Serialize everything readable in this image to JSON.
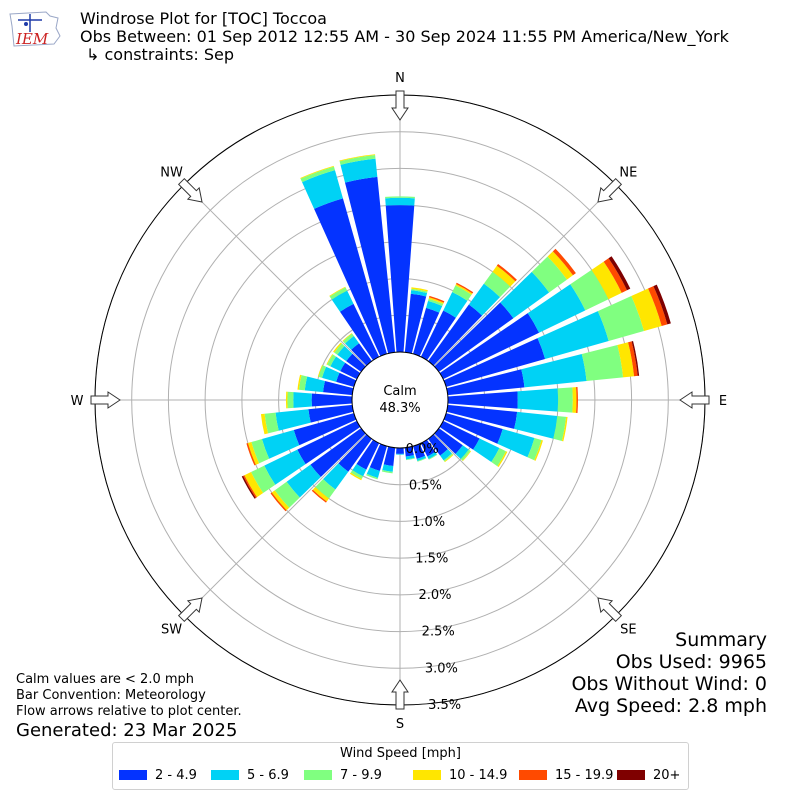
{
  "header": {
    "title": "Windrose Plot for [TOC] Toccoa",
    "obs_between": "Obs Between: 01 Sep 2012 12:55 AM - 30 Sep 2024 11:55 PM America/New_York",
    "constraints": "↳ constraints: Sep",
    "logo_text": "IEM"
  },
  "notes": {
    "calm_note": "Calm values are < 2.0 mph",
    "bar_convention": "Bar Convention: Meteorology",
    "flow_arrows": "Flow arrows relative to plot center.",
    "generated": "Generated: 23 Mar 2025"
  },
  "summary": {
    "heading": "Summary",
    "obs_used": "Obs Used: 9965",
    "obs_without_wind": "Obs Without Wind: 0",
    "avg_speed": "Avg Speed: 2.8 mph"
  },
  "calm": {
    "label": "Calm",
    "value": "48.3%",
    "percent": 48.3
  },
  "colors": {
    "2 - 4.9": "#0433ff",
    "5 - 6.9": "#00d2f5",
    "7 - 9.9": "#80ff80",
    "10 - 14.9": "#ffe600",
    "15 - 19.9": "#ff4a00",
    "20+": "#7f0000"
  },
  "chart_data": {
    "type": "windrose",
    "radial_unit": "%",
    "radial_ticks": [
      "0.0%",
      "0.5%",
      "1.0%",
      "1.5%",
      "2.0%",
      "2.5%",
      "3.0%",
      "3.5%"
    ],
    "radial_max": 3.5,
    "direction_labels": [
      "N",
      "NE",
      "E",
      "SE",
      "S",
      "SW",
      "W",
      "NW"
    ],
    "legend_title": "Wind Speed [mph]",
    "speed_bins": [
      "2 - 4.9",
      "5 - 6.9",
      "7 - 9.9",
      "10 - 14.9",
      "15 - 19.9",
      "20+"
    ],
    "sector_centers_deg": [
      0,
      10,
      20,
      30,
      40,
      50,
      60,
      70,
      80,
      90,
      100,
      110,
      120,
      130,
      140,
      150,
      160,
      170,
      180,
      190,
      200,
      210,
      220,
      230,
      240,
      250,
      260,
      270,
      280,
      290,
      300,
      310,
      320,
      330,
      340,
      350
    ],
    "sectors": [
      [
        2.0,
        0.1,
        0.02,
        0,
        0,
        0
      ],
      [
        0.8,
        0.05,
        0.02,
        0.02,
        0,
        0
      ],
      [
        0.65,
        0.1,
        0.03,
        0.02,
        0.02,
        0
      ],
      [
        0.7,
        0.28,
        0.1,
        0.02,
        0.02,
        0
      ],
      [
        0.95,
        0.35,
        0.2,
        0.1,
        0.03,
        0
      ],
      [
        1.25,
        0.6,
        0.3,
        0.1,
        0.05,
        0
      ],
      [
        1.45,
        0.7,
        0.35,
        0.2,
        0.08,
        0.05
      ],
      [
        1.4,
        0.9,
        0.5,
        0.25,
        0.08,
        0.05
      ],
      [
        1.05,
        0.85,
        0.5,
        0.15,
        0.05,
        0.02
      ],
      [
        0.95,
        0.55,
        0.2,
        0.05,
        0.02,
        0
      ],
      [
        0.95,
        0.55,
        0.12,
        0.02,
        0,
        0
      ],
      [
        0.8,
        0.45,
        0.1,
        0.02,
        0,
        0
      ],
      [
        0.55,
        0.3,
        0.1,
        0.02,
        0,
        0
      ],
      [
        0.4,
        0.1,
        0.03,
        0.01,
        0,
        0
      ],
      [
        0.28,
        0.08,
        0.02,
        0.01,
        0,
        0
      ],
      [
        0.2,
        0.04,
        0.01,
        0,
        0,
        0
      ],
      [
        0.18,
        0.03,
        0.01,
        0,
        0,
        0
      ],
      [
        0.12,
        0.04,
        0.01,
        0,
        0,
        0
      ],
      [
        0.08,
        0.01,
        0,
        0,
        0,
        0
      ],
      [
        0.25,
        0.08,
        0.02,
        0,
        0,
        0
      ],
      [
        0.35,
        0.1,
        0.02,
        0,
        0,
        0
      ],
      [
        0.4,
        0.1,
        0.04,
        0.02,
        0,
        0
      ],
      [
        0.55,
        0.3,
        0.15,
        0.05,
        0.02,
        0
      ],
      [
        0.85,
        0.4,
        0.2,
        0.05,
        0.02,
        0
      ],
      [
        0.9,
        0.5,
        0.2,
        0.1,
        0.02,
        0.02
      ],
      [
        0.85,
        0.45,
        0.15,
        0.05,
        0.02,
        0
      ],
      [
        0.6,
        0.45,
        0.15,
        0.05,
        0,
        0
      ],
      [
        0.55,
        0.25,
        0.08,
        0.02,
        0,
        0
      ],
      [
        0.4,
        0.25,
        0.08,
        0.02,
        0,
        0
      ],
      [
        0.25,
        0.2,
        0.05,
        0.01,
        0,
        0
      ],
      [
        0.25,
        0.15,
        0.05,
        0.01,
        0,
        0
      ],
      [
        0.25,
        0.15,
        0.05,
        0.02,
        0,
        0
      ],
      [
        0.3,
        0.12,
        0.04,
        0.01,
        0,
        0
      ],
      [
        0.8,
        0.2,
        0.05,
        0.01,
        0,
        0
      ],
      [
        2.2,
        0.4,
        0.05,
        0.01,
        0,
        0
      ],
      [
        2.4,
        0.25,
        0.05,
        0.01,
        0,
        0
      ]
    ]
  }
}
